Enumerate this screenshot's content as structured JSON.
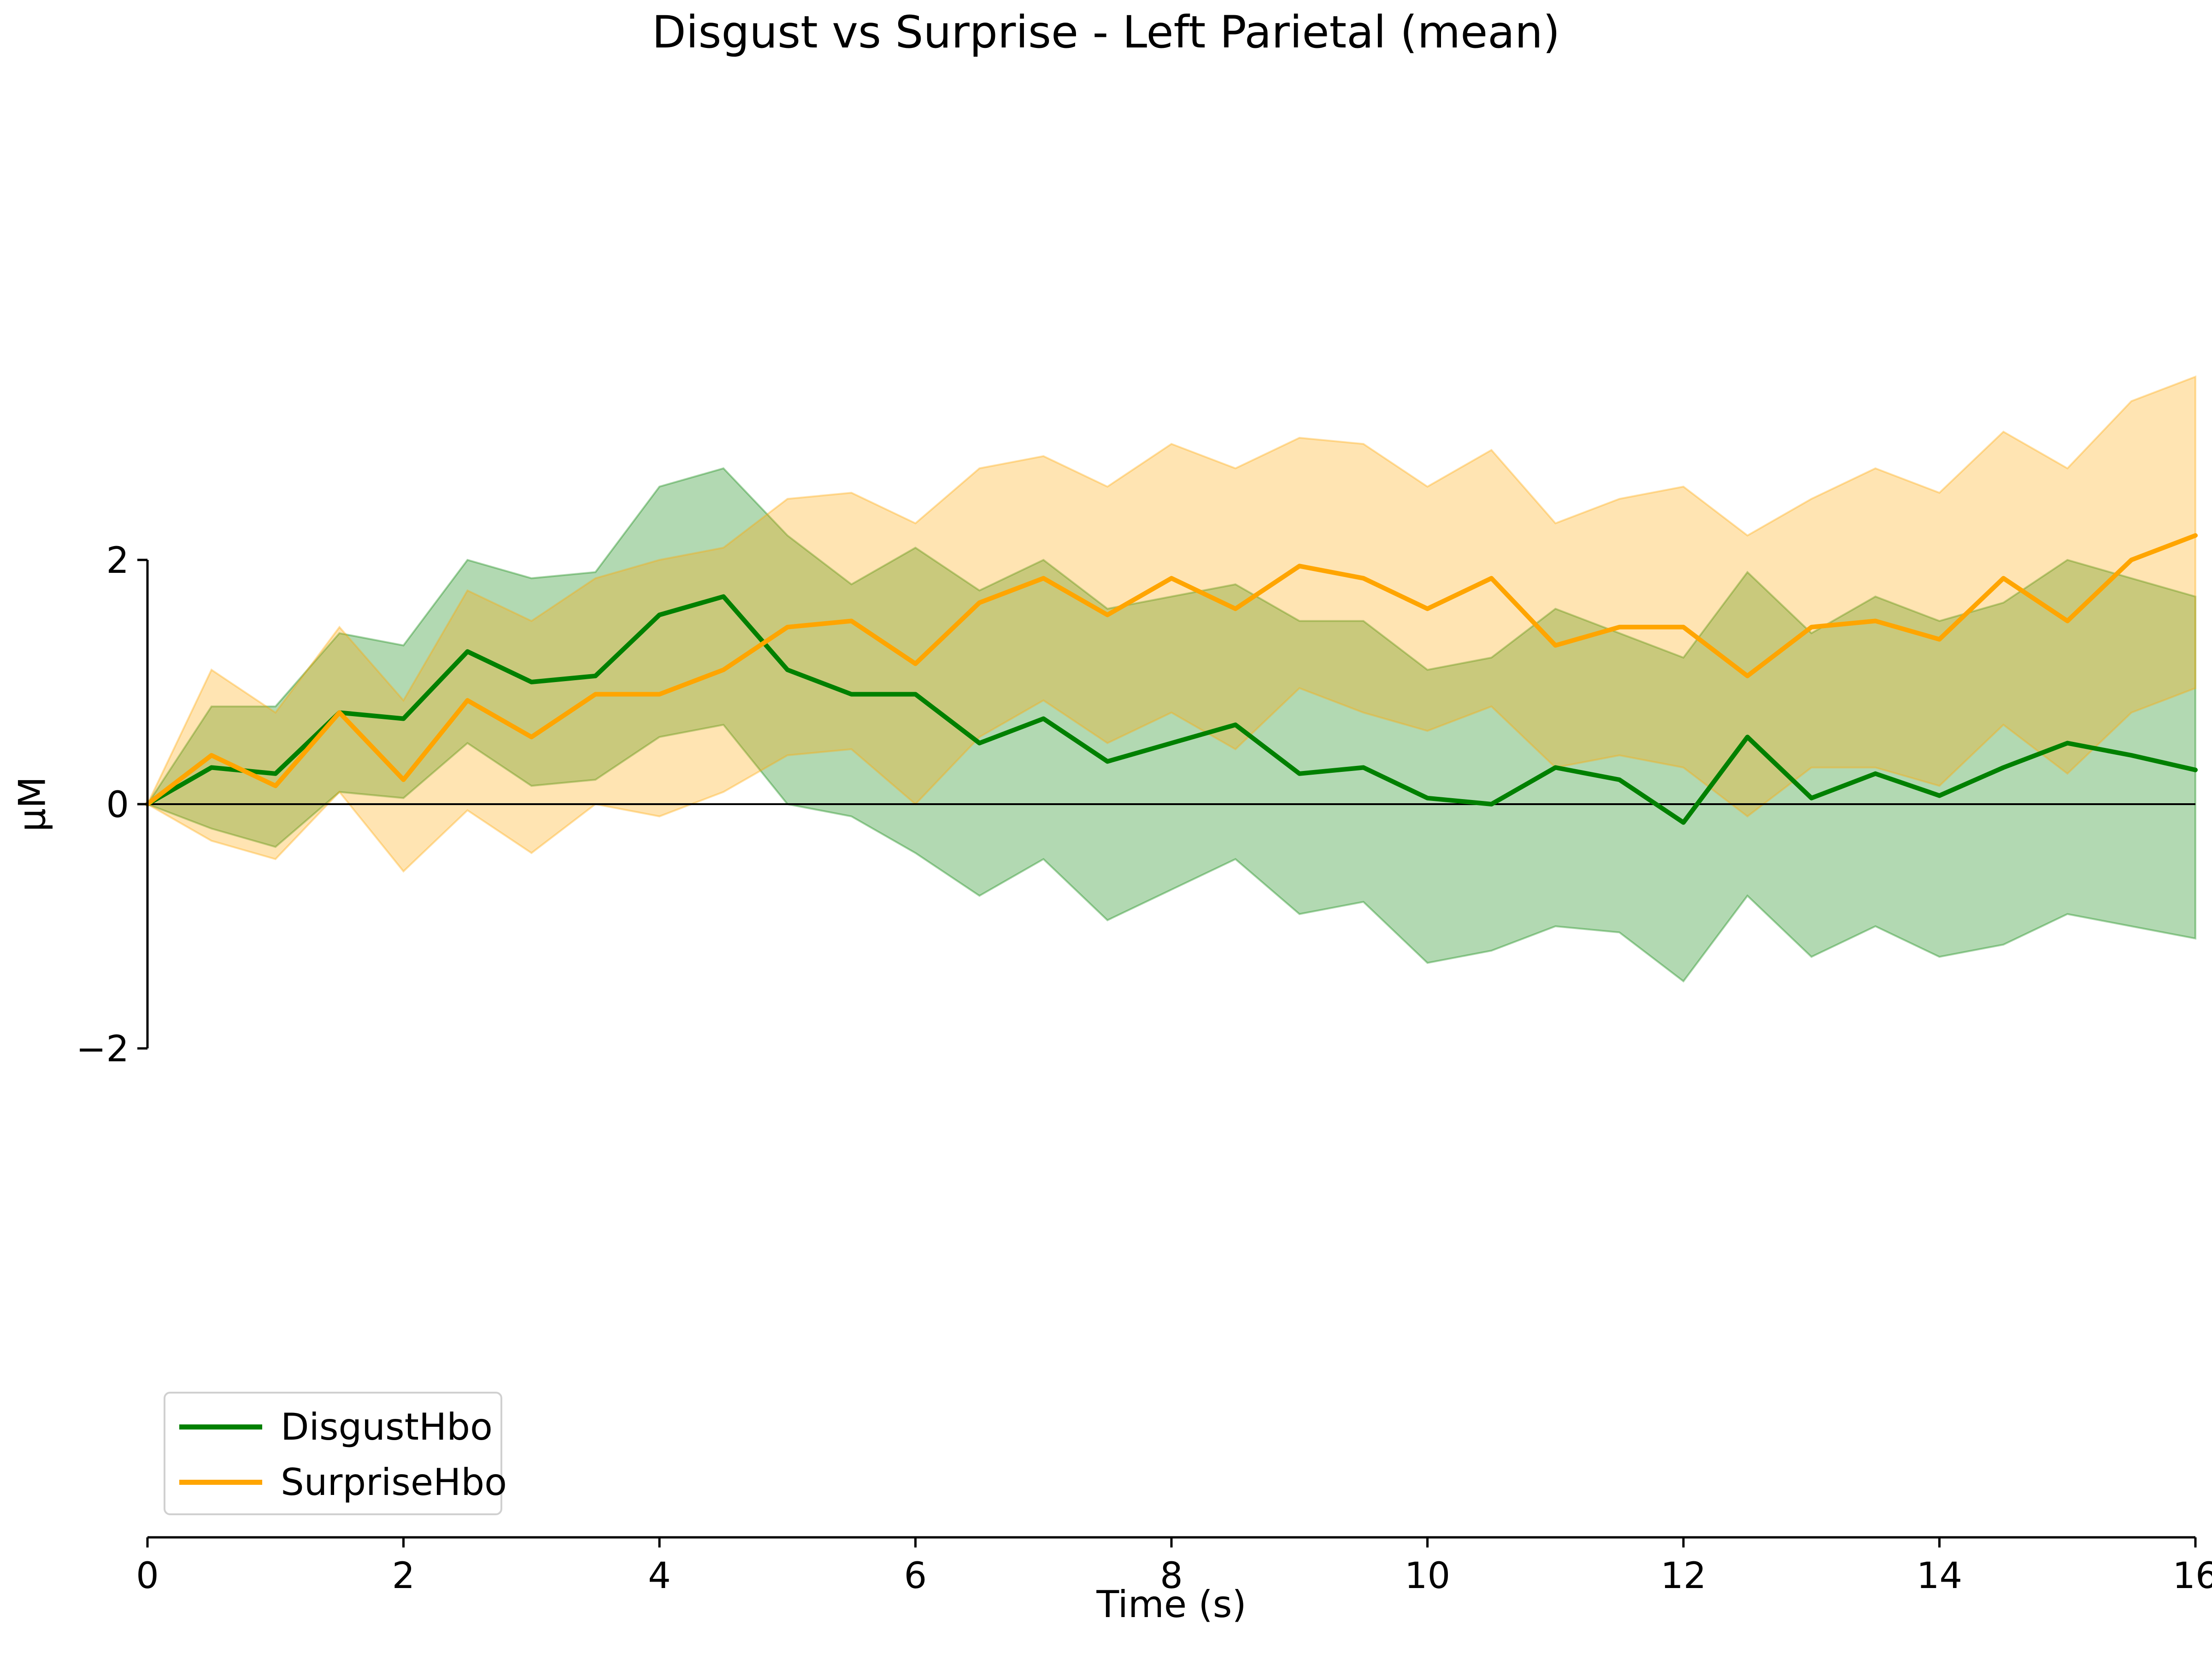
{
  "chart_data": {
    "type": "line",
    "title": "Disgust vs Surprise - Left Parietal (mean)",
    "xlabel": "Time (s)",
    "ylabel": "µM",
    "xlim": [
      0,
      16
    ],
    "ylim": [
      -5,
      6.5
    ],
    "x_ticks": [
      0,
      2,
      4,
      6,
      8,
      10,
      12,
      14,
      16
    ],
    "x_tick_labels": [
      "0",
      "2",
      "4",
      "6",
      "8",
      "10",
      "12",
      "14",
      "16"
    ],
    "y_ticks": [
      -2,
      0,
      2
    ],
    "y_tick_labels": [
      "−2",
      "0",
      "2"
    ],
    "grid": false,
    "legend_position": "lower-left",
    "zero_line": true,
    "x": [
      0,
      0.5,
      1,
      1.5,
      2,
      2.5,
      3,
      3.5,
      4,
      4.5,
      5,
      5.5,
      6,
      6.5,
      7,
      7.5,
      8,
      8.5,
      9,
      9.5,
      10,
      10.5,
      11,
      11.5,
      12,
      12.5,
      13,
      13.5,
      14,
      14.5,
      15,
      15.5,
      16
    ],
    "series": [
      {
        "name": "DisgustHbo",
        "color": "#008000",
        "band_color": "#008000",
        "values": [
          0,
          0.3,
          0.25,
          0.75,
          0.7,
          1.25,
          1.0,
          1.05,
          1.55,
          1.7,
          1.1,
          0.9,
          0.9,
          0.5,
          0.7,
          0.35,
          0.5,
          0.65,
          0.25,
          0.3,
          0.05,
          0.0,
          0.3,
          0.2,
          -0.15,
          0.55,
          0.05,
          0.25,
          0.07,
          0.3,
          0.5,
          0.4,
          0.28
        ],
        "upper": [
          0,
          0.8,
          0.8,
          1.4,
          1.3,
          2.0,
          1.85,
          1.9,
          2.6,
          2.75,
          2.2,
          1.8,
          2.1,
          1.75,
          2.0,
          1.6,
          1.7,
          1.8,
          1.5,
          1.5,
          1.1,
          1.2,
          1.6,
          1.4,
          1.2,
          1.9,
          1.4,
          1.7,
          1.5,
          1.65,
          2.0,
          1.85,
          1.7
        ],
        "lower": [
          0,
          -0.2,
          -0.35,
          0.1,
          0.05,
          0.5,
          0.15,
          0.2,
          0.55,
          0.65,
          0.0,
          -0.1,
          -0.4,
          -0.75,
          -0.45,
          -0.95,
          -0.7,
          -0.45,
          -0.9,
          -0.8,
          -1.3,
          -1.2,
          -1.0,
          -1.05,
          -1.45,
          -0.75,
          -1.25,
          -1.0,
          -1.25,
          -1.15,
          -0.9,
          -1.0,
          -1.1
        ]
      },
      {
        "name": "SurpriseHbo",
        "color": "#ffa500",
        "band_color": "#ffa500",
        "values": [
          0,
          0.4,
          0.15,
          0.75,
          0.2,
          0.85,
          0.55,
          0.9,
          0.9,
          1.1,
          1.45,
          1.5,
          1.15,
          1.65,
          1.85,
          1.55,
          1.85,
          1.6,
          1.95,
          1.85,
          1.6,
          1.85,
          1.3,
          1.45,
          1.45,
          1.05,
          1.45,
          1.5,
          1.35,
          1.85,
          1.5,
          2.0,
          2.2
        ],
        "upper": [
          0,
          1.1,
          0.75,
          1.45,
          0.85,
          1.75,
          1.5,
          1.85,
          2.0,
          2.1,
          2.5,
          2.55,
          2.3,
          2.75,
          2.85,
          2.6,
          2.95,
          2.75,
          3.0,
          2.95,
          2.6,
          2.9,
          2.3,
          2.5,
          2.6,
          2.2,
          2.5,
          2.75,
          2.55,
          3.05,
          2.75,
          3.3,
          3.5
        ],
        "lower": [
          0,
          -0.3,
          -0.45,
          0.1,
          -0.55,
          -0.05,
          -0.4,
          0.0,
          -0.1,
          0.1,
          0.4,
          0.45,
          0.0,
          0.55,
          0.85,
          0.5,
          0.75,
          0.45,
          0.95,
          0.75,
          0.6,
          0.8,
          0.3,
          0.4,
          0.3,
          -0.1,
          0.3,
          0.3,
          0.15,
          0.65,
          0.25,
          0.75,
          0.95
        ]
      }
    ]
  }
}
